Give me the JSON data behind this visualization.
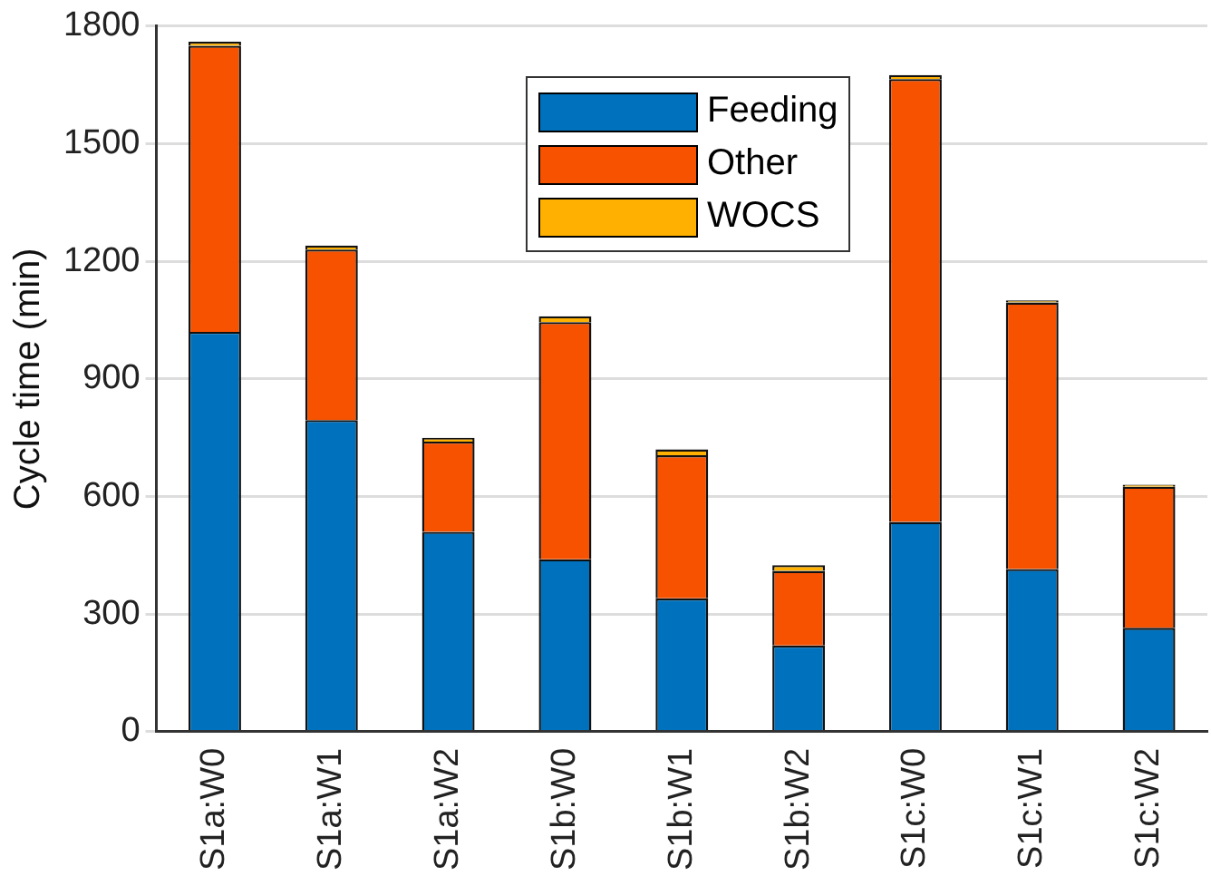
{
  "chart_data": {
    "type": "bar",
    "ylabel": "Cycle time (min)",
    "categories": [
      "S1a:W0",
      "S1a:W1",
      "S1a:W2",
      "S1b:W0",
      "S1b:W1",
      "S1b:W2",
      "S1c:W0",
      "S1c:W1",
      "S1c:W2"
    ],
    "series": [
      {
        "name": "Feeding",
        "color": "#0072bd",
        "values": [
          1020,
          795,
          510,
          440,
          340,
          220,
          535,
          415,
          265
        ]
      },
      {
        "name": "Other",
        "color": "#f65200",
        "values": [
          730,
          435,
          230,
          605,
          365,
          190,
          1130,
          680,
          360
        ]
      },
      {
        "name": "WOCS",
        "color": "#ffb000",
        "values": [
          10,
          10,
          10,
          15,
          15,
          15,
          10,
          5,
          5
        ]
      }
    ],
    "stacked": true,
    "ylim": [
      0,
      1800
    ],
    "yticks": [
      0,
      300,
      600,
      900,
      1200,
      1500,
      1800
    ],
    "grid": "y",
    "legend": "top"
  }
}
